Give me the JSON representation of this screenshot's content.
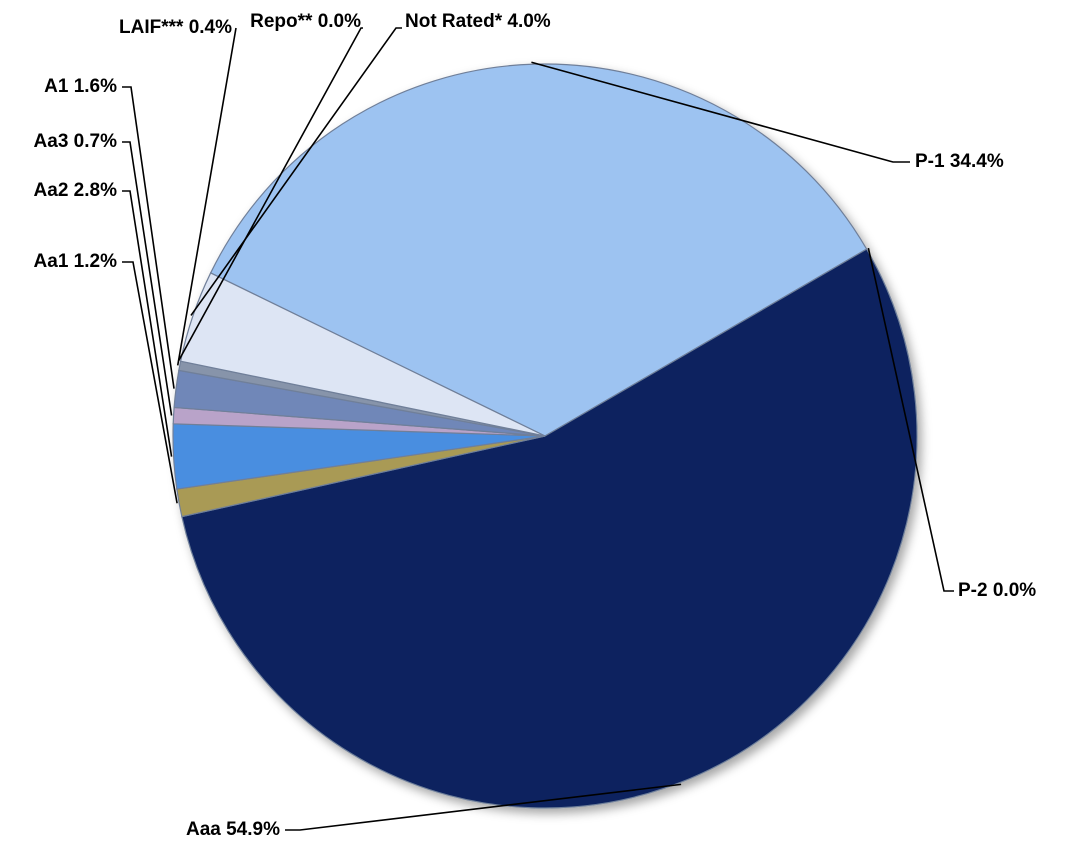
{
  "chart_data": {
    "type": "pie",
    "title": "",
    "slices": [
      {
        "name": "P-1",
        "value": 34.4,
        "label": "P-1 34.4%",
        "color": "#9dc3f1"
      },
      {
        "name": "P-2",
        "value": 0.0,
        "label": "P-2 0.0%",
        "color": "#8fb3e3"
      },
      {
        "name": "Aaa",
        "value": 54.9,
        "label": "Aaa 54.9%",
        "color": "#07225f"
      },
      {
        "name": "Aa1",
        "value": 1.2,
        "label": "Aa1 1.2%",
        "color": "#a99a55"
      },
      {
        "name": "Aa2",
        "value": 2.8,
        "label": "Aa2 2.8%",
        "color": "#4a8ee0"
      },
      {
        "name": "Aa3",
        "value": 0.7,
        "label": "Aa3 0.7%",
        "color": "#b9a3c9"
      },
      {
        "name": "A1",
        "value": 1.6,
        "label": "A1 1.6%",
        "color": "#6f87b8"
      },
      {
        "name": "LAIF***",
        "value": 0.4,
        "label": "LAIF*** 0.4%",
        "color": "#8794aa"
      },
      {
        "name": "Repo**",
        "value": 0.0,
        "label": "Repo** 0.0%",
        "color": "#9aa6bb"
      },
      {
        "name": "Not Rated*",
        "value": 4.0,
        "label": "Not Rated* 4.0%",
        "color": "#dde5f4"
      }
    ],
    "label_style": "outside labels with leader lines",
    "legend": "none"
  }
}
